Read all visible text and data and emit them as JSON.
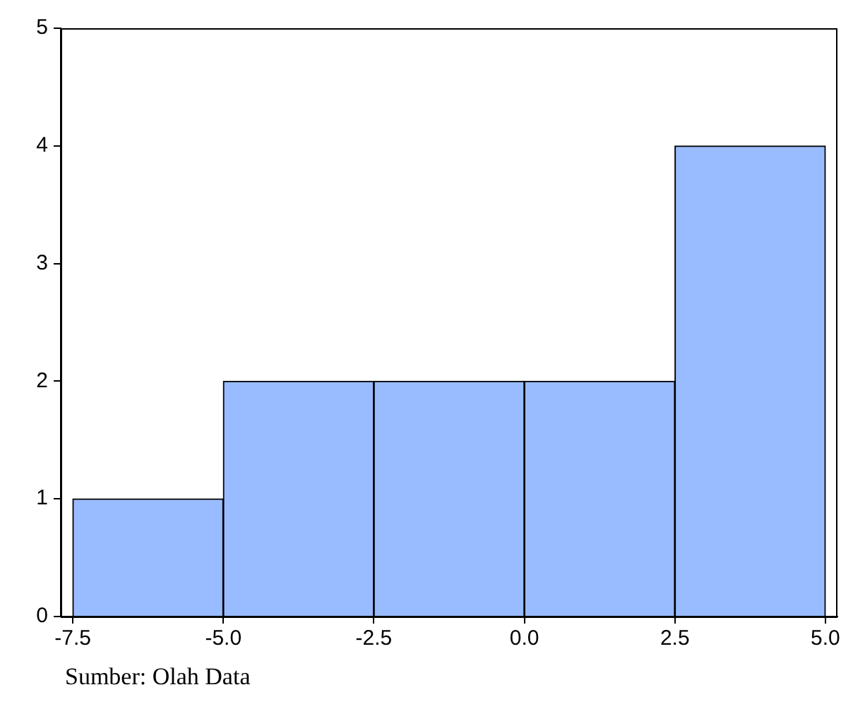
{
  "chart_data": {
    "type": "histogram",
    "bins": [
      -7.5,
      -5.0,
      -2.5,
      0.0,
      2.5,
      5.0
    ],
    "values": [
      1,
      2,
      2,
      2,
      4
    ],
    "color": "#99bbff",
    "xlim": [
      -7.7,
      5.2
    ],
    "xticks": [
      {
        "value": -7.5,
        "label": "-7.5"
      },
      {
        "value": -5,
        "label": "-5.0"
      },
      {
        "value": -2.5,
        "label": "-2.5"
      },
      {
        "value": 0,
        "label": "0.0"
      },
      {
        "value": 2.5,
        "label": "2.5"
      },
      {
        "value": 5,
        "label": "5.0"
      }
    ],
    "ylim": [
      0,
      5
    ],
    "yticks": [
      0,
      1,
      2,
      3,
      4,
      5
    ],
    "grid": false,
    "legend": false,
    "annotations": [
      "Sumber: Olah Data"
    ]
  }
}
